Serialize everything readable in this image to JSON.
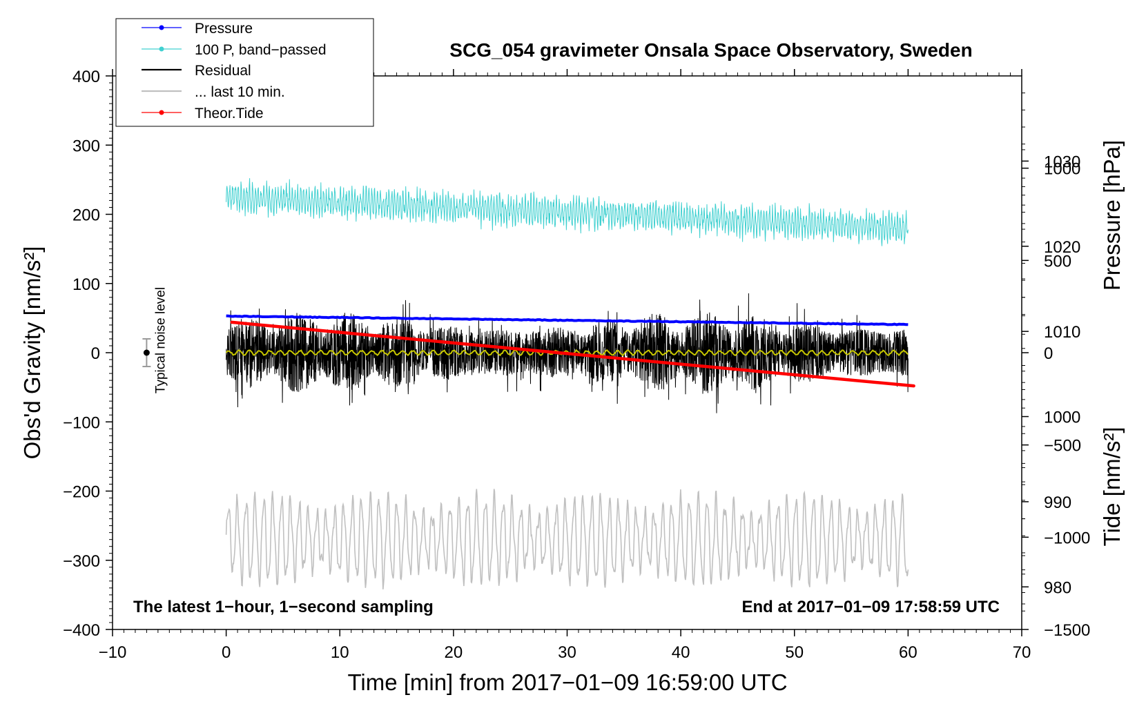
{
  "chart_data": {
    "type": "line",
    "title": "SCG_054 gravimeter Onsala Space Observatory, Sweden",
    "xlabel": "Time [min] from 2017−01−09 16:59:00 UTC",
    "ylabel_left": "Obs'd Gravity [nm/s²]",
    "ylabel_right_top": "Pressure [hPa]",
    "ylabel_right_bottom": "Tide [nm/s²]",
    "xlim": [
      -10,
      70
    ],
    "ylim_left": [
      -400,
      400
    ],
    "pressure_ylim": [
      975,
      1040
    ],
    "tide_ylim": [
      -1500,
      1500
    ],
    "x_ticks": [
      "−10",
      "0",
      "10",
      "20",
      "30",
      "40",
      "50",
      "60",
      "70"
    ],
    "x_tick_values": [
      -10,
      0,
      10,
      20,
      30,
      40,
      50,
      60,
      70
    ],
    "y_left_ticks": [
      "400",
      "300",
      "200",
      "100",
      "0",
      "−100",
      "−200",
      "−300",
      "−400"
    ],
    "y_left_tick_values": [
      400,
      300,
      200,
      100,
      0,
      -100,
      -200,
      -300,
      -400
    ],
    "pressure_ticks": [
      "1030",
      "1020",
      "1010",
      "1000",
      "990",
      "980"
    ],
    "pressure_tick_values": [
      1030,
      1020,
      1010,
      1000,
      990,
      980
    ],
    "tide_ticks": [
      "1000",
      "500",
      "0",
      "−500",
      "−1000",
      "−1500"
    ],
    "tide_tick_values": [
      1000,
      500,
      0,
      -500,
      -1000,
      -1500
    ],
    "legend": [
      {
        "label": "Pressure",
        "color": "#0000ff",
        "marker": true
      },
      {
        "label": "100 P, band−passed",
        "color": "#40d0d0",
        "marker": true
      },
      {
        "label": "Residual",
        "color": "#000000",
        "marker": false
      },
      {
        "label": "... last 10 min.",
        "color": "#c0c0c0",
        "marker": false
      },
      {
        "label": "Theor.Tide",
        "color": "#ff0000",
        "marker": true
      }
    ],
    "series": [
      {
        "name": "Pressure",
        "color": "#0000ff",
        "axis": "pressure",
        "x": [
          0,
          60
        ],
        "values": [
          1011.8,
          1010.8
        ]
      },
      {
        "name": "100 P, band−passed",
        "color": "#40d0d0",
        "axis": "left",
        "x_range": [
          0,
          60
        ],
        "mean_start": 225,
        "mean_end": 180,
        "amplitude": 25
      },
      {
        "name": "Residual",
        "color": "#000000",
        "axis": "left",
        "x_range": [
          0,
          60
        ],
        "mean": 0,
        "amplitude": 60
      },
      {
        "name": "Smoothed residual",
        "color": "#c8c800",
        "axis": "left",
        "x_range": [
          0,
          60
        ],
        "mean": 0,
        "amplitude": 3
      },
      {
        "name": "... last 10 min.",
        "color": "#c0c0c0",
        "axis": "left",
        "x_range": [
          0,
          60
        ],
        "mean": -270,
        "amplitude": 60
      },
      {
        "name": "Theor.Tide",
        "color": "#ff0000",
        "axis": "tide",
        "x": [
          0.5,
          60.5
        ],
        "values": [
          165,
          -180
        ]
      }
    ],
    "noise_level": {
      "label": "Typical noise level",
      "x": -7,
      "y": 0,
      "err": 20
    }
  },
  "annotations": {
    "left": "The latest 1−hour, 1−second sampling",
    "right": "End at 2017−01−09 17:58:59 UTC"
  },
  "colors": {
    "pressure": "#0000ff",
    "bandpassed": "#40d0d0",
    "residual": "#000000",
    "smoothed": "#c8c800",
    "last10": "#c0c0c0",
    "tide": "#ff0000"
  }
}
